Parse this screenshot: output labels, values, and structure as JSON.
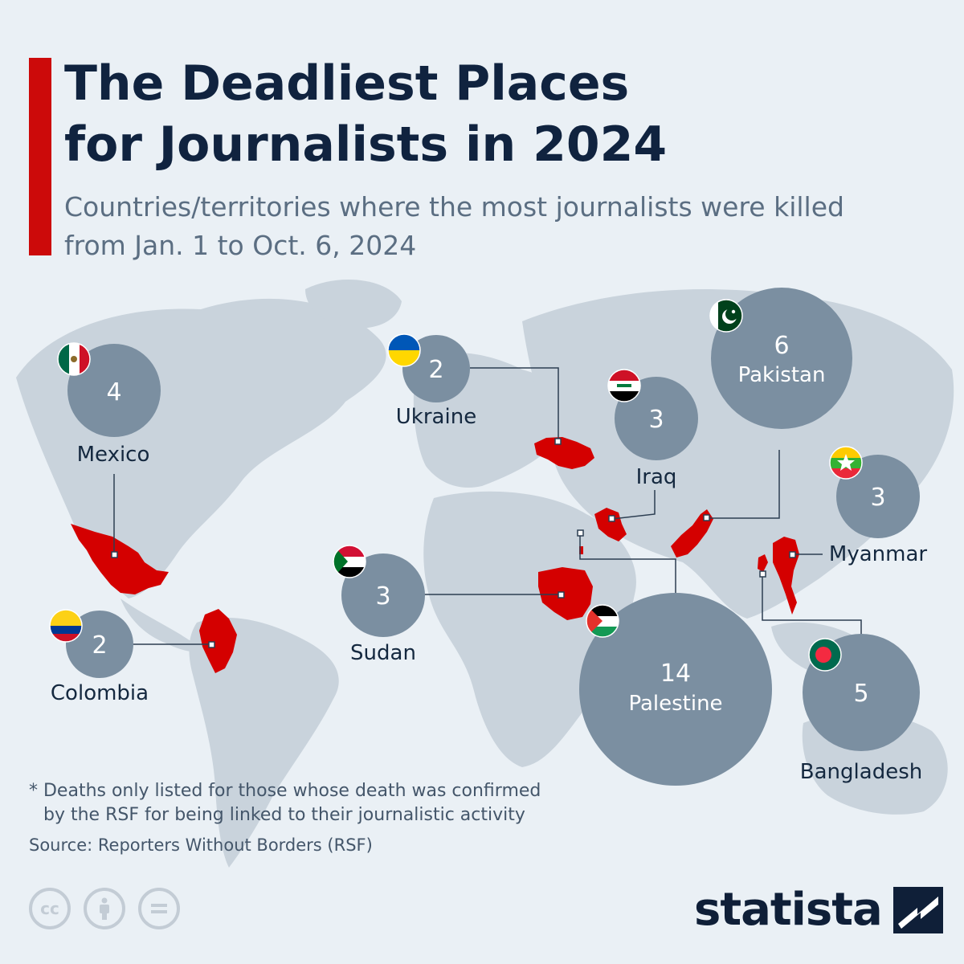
{
  "header": {
    "title_lines": [
      "The Deadliest Places",
      "for Journalists in 2024"
    ],
    "subtitle_lines": [
      "Countries/territories where the most journalists were killed",
      "from Jan. 1 to Oct. 6, 2024"
    ]
  },
  "colors": {
    "accent": "#cc0a0a",
    "bubble": "#7b8fa1",
    "country_fill": "#d40000",
    "land": "#c9d3dc",
    "ocean": "#eaf0f5",
    "leader": "#2c3e52",
    "text_dark": "#14283f"
  },
  "countries": [
    {
      "name": "Mexico",
      "value": "4",
      "flag": "mexico-flag"
    },
    {
      "name": "Colombia",
      "value": "2",
      "flag": "colombia-flag"
    },
    {
      "name": "Ukraine",
      "value": "2",
      "flag": "ukraine-flag"
    },
    {
      "name": "Iraq",
      "value": "3",
      "flag": "iraq-flag"
    },
    {
      "name": "Pakistan",
      "value": "6",
      "flag": "pakistan-flag"
    },
    {
      "name": "Myanmar",
      "value": "3",
      "flag": "myanmar-flag"
    },
    {
      "name": "Sudan",
      "value": "3",
      "flag": "sudan-flag"
    },
    {
      "name": "Palestine",
      "value": "14",
      "flag": "palestine-flag"
    },
    {
      "name": "Bangladesh",
      "value": "5",
      "flag": "bangladesh-flag"
    }
  ],
  "footer": {
    "note_line1": "* Deaths only listed for those whose death was confirmed",
    "note_line2": "by the RSF for being linked to their journalistic activity",
    "source": "Source: Reporters Without Borders (RSF)",
    "license_icons": [
      "cc-icon",
      "attribution-icon",
      "no-derivatives-icon"
    ],
    "brand": "statista"
  }
}
